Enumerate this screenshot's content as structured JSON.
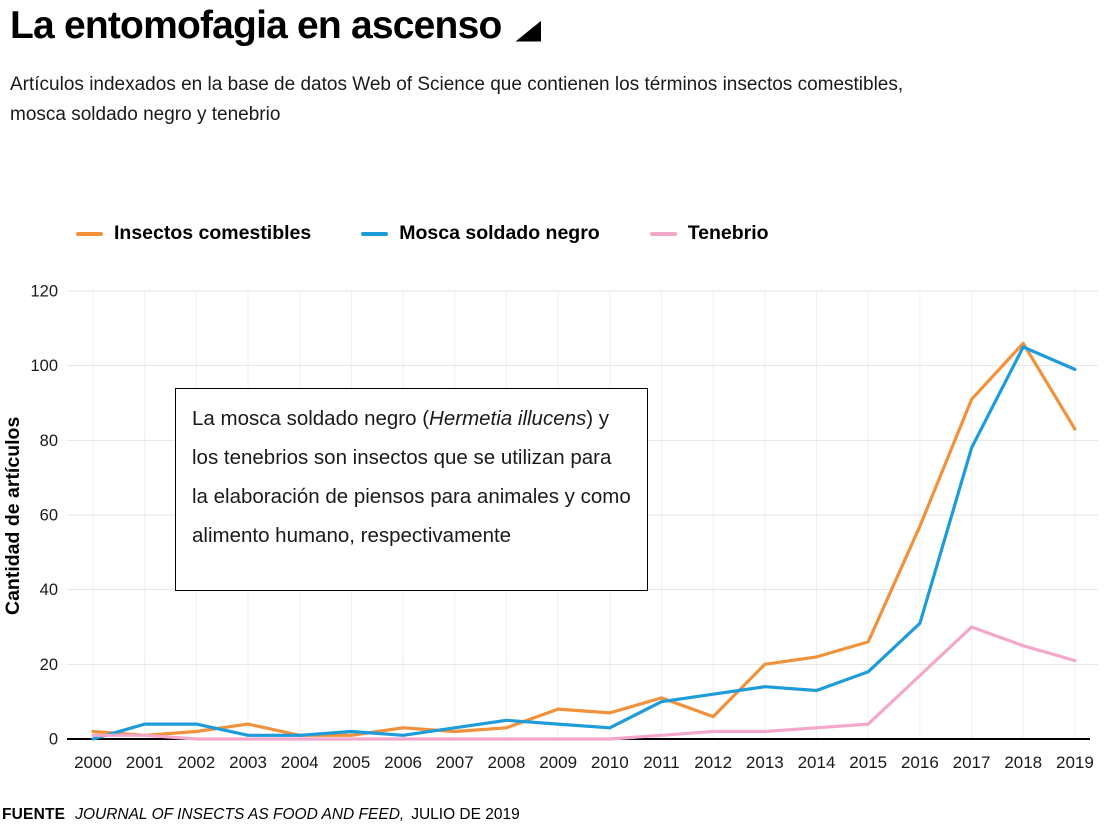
{
  "header": {
    "title": "La entomofagia en ascenso",
    "subtitle": "Artículos indexados en la base de datos Web of Science que contienen los términos insectos comestibles, mosca soldado negro y tenebrio"
  },
  "chart_data": {
    "type": "line",
    "x": [
      2000,
      2001,
      2002,
      2003,
      2004,
      2005,
      2006,
      2007,
      2008,
      2009,
      2010,
      2011,
      2012,
      2013,
      2014,
      2015,
      2016,
      2017,
      2018,
      2019
    ],
    "series": [
      {
        "name": "Insectos comestibles",
        "color": "#F0913C",
        "values": [
          2,
          1,
          2,
          4,
          1,
          1,
          3,
          2,
          3,
          8,
          7,
          11,
          6,
          20,
          22,
          26,
          57,
          91,
          106,
          83
        ]
      },
      {
        "name": "Mosca soldado negro",
        "color": "#1E9CD9",
        "values": [
          0,
          4,
          4,
          1,
          1,
          2,
          1,
          3,
          5,
          4,
          3,
          10,
          12,
          14,
          13,
          18,
          31,
          78,
          105,
          99
        ]
      },
      {
        "name": "Tenebrio",
        "color": "#F2A7CB",
        "values": [
          1,
          1,
          0,
          0,
          0,
          0,
          0,
          0,
          0,
          0,
          0,
          1,
          2,
          2,
          3,
          4,
          17,
          30,
          25,
          21
        ]
      }
    ],
    "ylabel": "Cantidad de artículos",
    "xlabel": "",
    "ylim": [
      0,
      120
    ],
    "yticks": [
      0,
      20,
      40,
      60,
      80,
      100,
      120
    ],
    "grid": true,
    "legend_position": "top"
  },
  "annotation": {
    "part1": "La mosca soldado negro (",
    "italic": "Hermetia illucens",
    "part2": ") y los tenebrios son insectos que se utilizan para la elaboración de piensos para animales y como alimento humano, respectivamente"
  },
  "footer": {
    "source_label": "FUENTE",
    "journal": "JOURNAL OF INSECTS AS FOOD AND FEED,",
    "date": "JULIO DE 2019"
  },
  "colors": {
    "grid": "#E4E4E4",
    "grid_vertical": "#F0F0F0",
    "axis": "#000000",
    "tick_text": "#1a1a1a"
  }
}
